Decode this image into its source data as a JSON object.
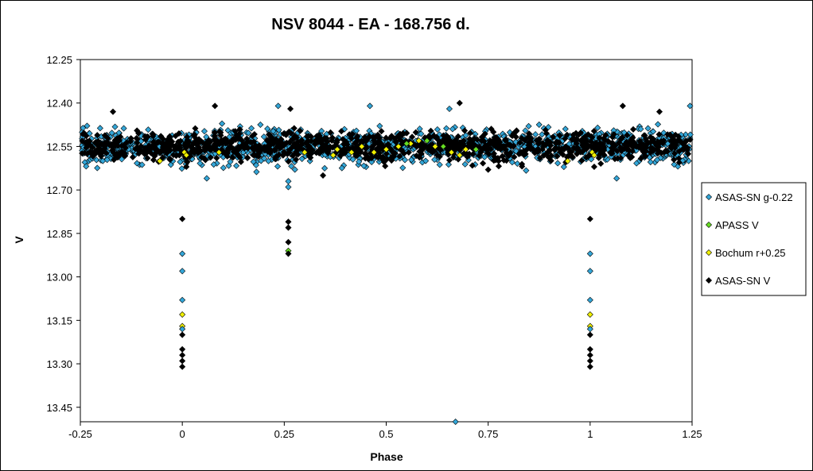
{
  "chart_data": {
    "type": "scatter",
    "title": "NSV 8044 - EA - 168.756 d.",
    "xlabel": "Phase",
    "ylabel": "V",
    "xlim": [
      -0.25,
      1.25
    ],
    "ylim": [
      12.25,
      13.5
    ],
    "y_inverted": true,
    "x_ticks": [
      "-0.25",
      "0",
      "0.25",
      "0.5",
      "0.75",
      "1",
      "1.25"
    ],
    "y_ticks": [
      "12.25",
      "12.40",
      "12.55",
      "12.70",
      "12.85",
      "13.00",
      "13.15",
      "13.30",
      "13.45"
    ],
    "grid": false,
    "legend_position": "right",
    "series": [
      {
        "name": "ASAS-SN g-0.22",
        "color": "#33a6d8",
        "marker": "diamond",
        "band": {
          "x_from": -0.25,
          "x_to": 1.25,
          "y_center": 12.55,
          "y_spread": 0.05
        },
        "outliers": [
          {
            "x": 0.0,
            "y": 12.92
          },
          {
            "x": 0.0,
            "y": 12.98
          },
          {
            "x": 0.0,
            "y": 13.08
          },
          {
            "x": 0.0,
            "y": 13.18
          },
          {
            "x": 1.0,
            "y": 12.92
          },
          {
            "x": 1.0,
            "y": 12.98
          },
          {
            "x": 1.0,
            "y": 13.08
          },
          {
            "x": 1.0,
            "y": 13.18
          },
          {
            "x": 0.26,
            "y": 12.67
          },
          {
            "x": 0.26,
            "y": 12.69
          },
          {
            "x": 0.67,
            "y": 13.5
          },
          {
            "x": 0.235,
            "y": 12.41
          },
          {
            "x": 0.655,
            "y": 12.42
          },
          {
            "x": 1.245,
            "y": 12.41
          },
          {
            "x": 0.46,
            "y": 12.41
          },
          {
            "x": 1.065,
            "y": 12.66
          },
          {
            "x": 0.06,
            "y": 12.66
          }
        ]
      },
      {
        "name": "APASS V",
        "color": "#66dd22",
        "marker": "diamond",
        "points": [
          {
            "x": 0.26,
            "y": 12.91
          },
          {
            "x": 0.55,
            "y": 12.54
          },
          {
            "x": 0.6,
            "y": 12.53
          },
          {
            "x": 0.64,
            "y": 12.55
          },
          {
            "x": 0.72,
            "y": 12.56
          }
        ]
      },
      {
        "name": "Bochum r+0.25",
        "color": "#f0f000",
        "marker": "diamond",
        "points": [
          {
            "x": -0.055,
            "y": 12.6
          },
          {
            "x": 0.005,
            "y": 12.57
          },
          {
            "x": 0.01,
            "y": 12.58
          },
          {
            "x": 0.0,
            "y": 13.13
          },
          {
            "x": 0.0,
            "y": 13.17
          },
          {
            "x": 1.0,
            "y": 13.13
          },
          {
            "x": 1.0,
            "y": 13.17
          },
          {
            "x": 0.3,
            "y": 12.57
          },
          {
            "x": 0.37,
            "y": 12.58
          },
          {
            "x": 0.38,
            "y": 12.56
          },
          {
            "x": 0.44,
            "y": 12.55
          },
          {
            "x": 0.47,
            "y": 12.57
          },
          {
            "x": 0.5,
            "y": 12.56
          },
          {
            "x": 0.53,
            "y": 12.55
          },
          {
            "x": 0.56,
            "y": 12.54
          },
          {
            "x": 0.58,
            "y": 12.53
          },
          {
            "x": 0.62,
            "y": 12.55
          },
          {
            "x": 0.66,
            "y": 12.57
          },
          {
            "x": 0.68,
            "y": 12.58
          },
          {
            "x": 0.695,
            "y": 12.56
          },
          {
            "x": 0.945,
            "y": 12.6
          },
          {
            "x": 1.005,
            "y": 12.57
          },
          {
            "x": 1.01,
            "y": 12.58
          },
          {
            "x": 0.09,
            "y": 12.57
          },
          {
            "x": 0.415,
            "y": 12.57
          }
        ]
      },
      {
        "name": "ASAS-SN V",
        "color": "#000000",
        "marker": "diamond",
        "band": {
          "x_from": -0.25,
          "x_to": 1.25,
          "y_center": 12.55,
          "y_spread": 0.04
        },
        "outliers": [
          {
            "x": 0.0,
            "y": 12.8
          },
          {
            "x": 0.0,
            "y": 13.2
          },
          {
            "x": 0.0,
            "y": 13.25
          },
          {
            "x": 0.0,
            "y": 13.27
          },
          {
            "x": 0.0,
            "y": 13.29
          },
          {
            "x": 0.0,
            "y": 13.31
          },
          {
            "x": 1.0,
            "y": 12.8
          },
          {
            "x": 1.0,
            "y": 13.2
          },
          {
            "x": 1.0,
            "y": 13.25
          },
          {
            "x": 1.0,
            "y": 13.27
          },
          {
            "x": 1.0,
            "y": 13.29
          },
          {
            "x": 1.0,
            "y": 13.31
          },
          {
            "x": 0.26,
            "y": 12.81
          },
          {
            "x": 0.26,
            "y": 12.83
          },
          {
            "x": 0.26,
            "y": 12.88
          },
          {
            "x": 0.26,
            "y": 12.92
          },
          {
            "x": 0.08,
            "y": 12.41
          },
          {
            "x": -0.17,
            "y": 12.43
          },
          {
            "x": 0.265,
            "y": 12.42
          },
          {
            "x": 0.68,
            "y": 12.4
          },
          {
            "x": 1.08,
            "y": 12.41
          },
          {
            "x": 1.17,
            "y": 12.43
          },
          {
            "x": 0.345,
            "y": 12.65
          },
          {
            "x": 0.01,
            "y": 12.62
          },
          {
            "x": 1.01,
            "y": 12.62
          },
          {
            "x": 0.75,
            "y": 12.63
          }
        ]
      }
    ]
  }
}
